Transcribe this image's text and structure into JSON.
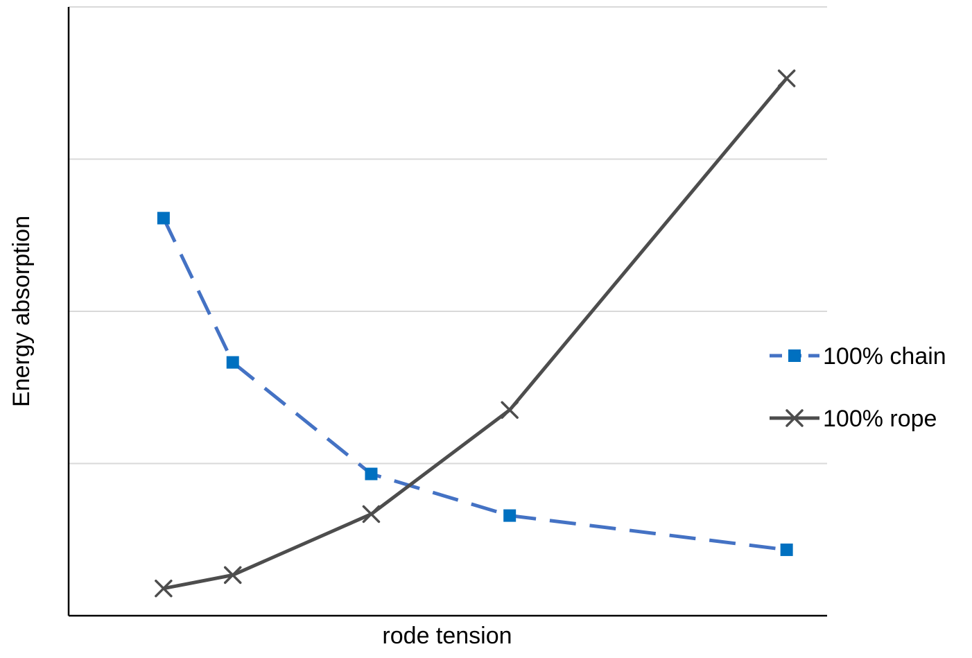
{
  "chart_data": {
    "type": "line",
    "title": "",
    "xlabel": "rode tension",
    "ylabel": "Energy absorption",
    "x": [
      1,
      2,
      4,
      6,
      10
    ],
    "ylim": [
      0,
      4
    ],
    "yticks": [
      0,
      1,
      2,
      3,
      4
    ],
    "grid": true,
    "legend_position": "right",
    "series": [
      {
        "name": "100% chain",
        "values": [
          2.58,
          1.61,
          0.86,
          0.58,
          0.35
        ],
        "color": "#4472C4",
        "marker_color": "#0070C0",
        "marker": "square",
        "line_style": "dashed"
      },
      {
        "name": "100% rope",
        "values": [
          0.09,
          0.18,
          0.59,
          1.29,
          3.52
        ],
        "color": "#4D4D4D",
        "marker": "x",
        "line_style": "solid"
      }
    ]
  }
}
